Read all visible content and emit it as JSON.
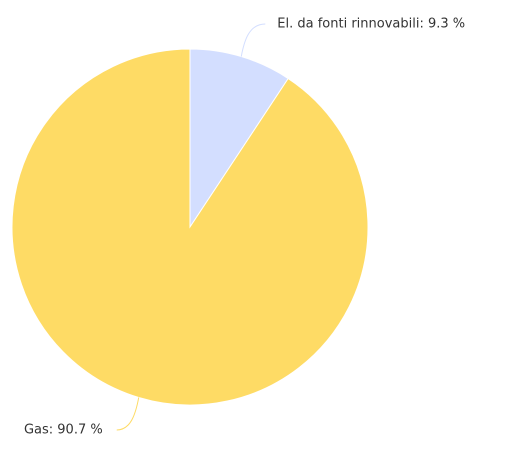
{
  "chart_data": {
    "type": "pie",
    "values": [
      9.3,
      90.7
    ],
    "value_labels": [
      "El. da fonti rinnovabili: 9.3 %",
      "Gas: 90.7 %"
    ],
    "colors": [
      "#d3deff",
      "#fedb65"
    ]
  }
}
